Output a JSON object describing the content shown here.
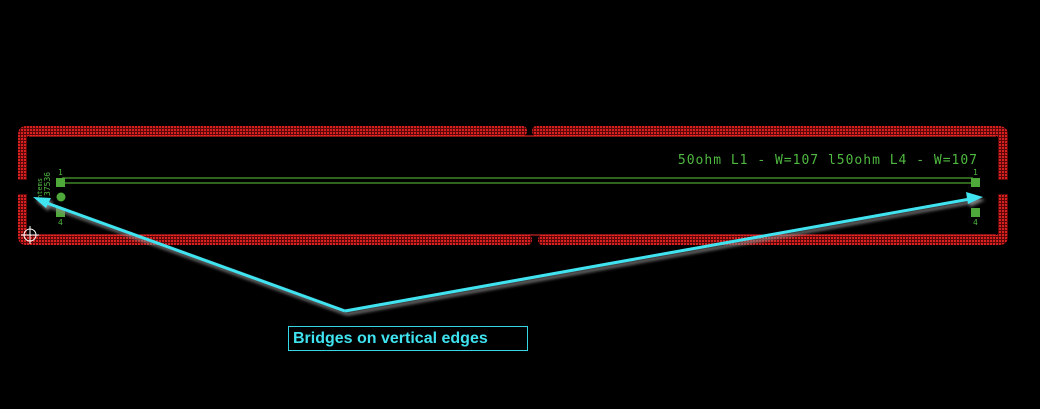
{
  "colors": {
    "background": "#000000",
    "board_outline": "#d82020",
    "trace": "#5fc83a",
    "pad": "#4fa83a",
    "silkscreen": "#4fb840",
    "callout": "#35d6e6",
    "crosshair": "#ffffff"
  },
  "board": {
    "trace_label": "50ohm L1 - W=107 l50ohm L4 - W=107",
    "designator": "37536",
    "footprint_label": "htems",
    "left_pin_top": "1",
    "left_pin_bottom": "4",
    "right_pin_top": "1",
    "right_pin_bottom": "4"
  },
  "annotation": {
    "text": "Bridges on vertical edges"
  },
  "icons": {
    "origin_marker": "crosshair-icon"
  }
}
